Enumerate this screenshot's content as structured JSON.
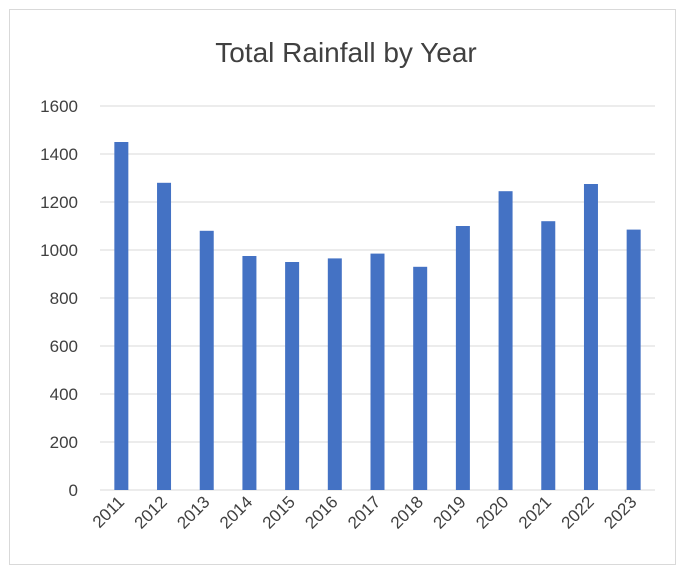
{
  "chart_data": {
    "type": "bar",
    "title": "Total Rainfall by Year",
    "xlabel": "",
    "ylabel": "",
    "categories": [
      "2011",
      "2012",
      "2013",
      "2014",
      "2015",
      "2016",
      "2017",
      "2018",
      "2019",
      "2020",
      "2021",
      "2022",
      "2023"
    ],
    "values": [
      1450,
      1280,
      1080,
      975,
      950,
      965,
      985,
      930,
      1100,
      1245,
      1120,
      1275,
      1085
    ],
    "ylim": [
      0,
      1600
    ],
    "yticks": [
      "0",
      "200",
      "400",
      "600",
      "800",
      "1000",
      "1200",
      "1400",
      "1600"
    ],
    "grid": true,
    "legend": "none",
    "colors": {
      "bar": "#4472C4",
      "grid": "#d9d9d9",
      "text": "#404040"
    }
  }
}
